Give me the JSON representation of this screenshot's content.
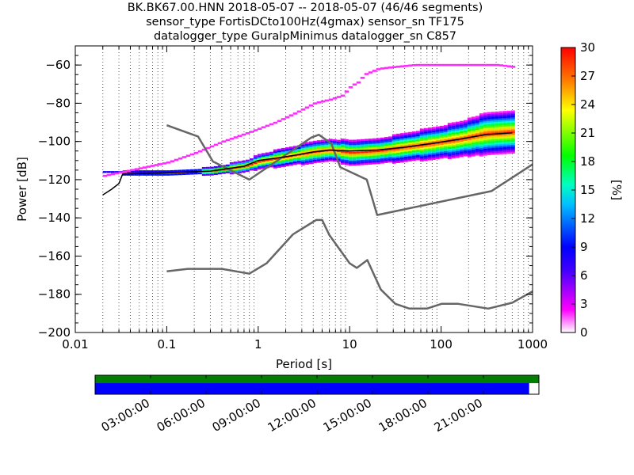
{
  "header": {
    "line1": "BK.BK67.00.HNN   2018-05-07 -- 2018-05-07  (46/46 segments)",
    "line2": "sensor_type FortisDCto100Hz(4gmax) sensor_sn TF175",
    "line3": "datalogger_type GuralpMinimus datalogger_sn C857"
  },
  "chart_data": {
    "type": "heatmap",
    "xlabel": "Period [s]",
    "ylabel": "Power [dB]",
    "x_scale": "log",
    "xlim": [
      0.01,
      1000
    ],
    "ylim": [
      -200,
      -50
    ],
    "x_ticks": [
      "0.01",
      "0.1",
      "1",
      "10",
      "100",
      "1000"
    ],
    "x_tick_values": [
      0.01,
      0.1,
      1,
      10,
      100,
      1000
    ],
    "y_ticks": [
      "−60",
      "−80",
      "−100",
      "−120",
      "−140",
      "−160",
      "−180",
      "−200"
    ],
    "y_tick_values": [
      -60,
      -80,
      -100,
      -120,
      -140,
      -160,
      -180,
      -200
    ],
    "grid": "dotted vertical at log minor ticks",
    "colorbar": {
      "label": "[%]",
      "range": [
        0,
        30
      ],
      "ticks": [
        "0",
        "3",
        "6",
        "9",
        "12",
        "15",
        "18",
        "21",
        "24",
        "27",
        "30"
      ],
      "tick_values": [
        0,
        3,
        6,
        9,
        12,
        15,
        18,
        21,
        24,
        27,
        30
      ],
      "colormap": "white-magenta-blue-cyan-green-yellow-red"
    },
    "nhnm": {
      "x": [
        0.1,
        0.22,
        0.32,
        0.8,
        3.8,
        4.6,
        6.3,
        7.9,
        15.4,
        20,
        354.8,
        1000
      ],
      "y": [
        -91.5,
        -97.4,
        -110.5,
        -120,
        -98,
        -96.5,
        -101,
        -113.5,
        -120,
        -138.5,
        -126,
        -112
      ]
    },
    "nlnm": {
      "x": [
        0.1,
        0.17,
        0.4,
        0.8,
        1.24,
        2.4,
        4.3,
        5,
        6,
        10,
        12,
        15.6,
        21.9,
        31.6,
        45,
        70,
        101,
        154,
        328,
        600,
        1000
      ],
      "y": [
        -168,
        -166.7,
        -166.7,
        -169.2,
        -163.7,
        -148.6,
        -141.1,
        -141.1,
        -149,
        -163.8,
        -166.2,
        -162.1,
        -177.5,
        -185,
        -187.5,
        -187.5,
        -185,
        -185,
        -187.5,
        -184.4,
        -178.5
      ]
    },
    "mode_line": {
      "x": [
        0.02,
        0.025,
        0.03,
        0.033,
        0.1,
        0.3,
        0.7,
        1,
        2,
        4,
        6,
        10,
        20,
        40,
        80,
        150,
        300,
        600
      ],
      "y": [
        -128,
        -125,
        -122,
        -117,
        -116.5,
        -115.5,
        -113,
        -110,
        -108,
        -105.5,
        -104.5,
        -105,
        -104.5,
        -103,
        -101,
        -99,
        -96.5,
        -95.5
      ]
    },
    "psd_band_center": {
      "x": [
        0.033,
        0.1,
        0.3,
        0.7,
        1,
        2,
        4,
        6,
        10,
        20,
        40,
        80,
        150,
        300,
        600
      ],
      "y": [
        -116.5,
        -116.5,
        -115.5,
        -113,
        -110.5,
        -108,
        -105.5,
        -104.5,
        -106,
        -105,
        -103,
        -101,
        -99,
        -96,
        -95
      ],
      "spread_db": [
        0,
        0,
        1,
        1.5,
        2,
        2.5,
        3,
        3,
        3.5,
        3.5,
        4,
        4.5,
        5,
        6,
        6
      ]
    },
    "psd_upper_branch": {
      "x": [
        0.02,
        0.05,
        0.1,
        0.2,
        0.4,
        0.8,
        1.5,
        2.5,
        4,
        6,
        8,
        10,
        12,
        14,
        20,
        30,
        50,
        100,
        200,
        400,
        600
      ],
      "y": [
        -118,
        -114,
        -111,
        -106,
        -100,
        -95,
        -90,
        -85,
        -80,
        -78,
        -76,
        -71,
        -69,
        -65,
        -62,
        -61,
        -60,
        -60,
        -60,
        -60,
        -61
      ],
      "colorbar_percent": 2
    },
    "low_band_stripe": {
      "x": [
        0.02,
        0.1,
        0.2
      ],
      "y": [
        -116,
        -116,
        -116
      ],
      "colorbar_percent": 8
    }
  },
  "time_bar": {
    "ticks": [
      "03:00:00",
      "06:00:00",
      "09:00:00",
      "12:00:00",
      "15:00:00",
      "18:00:00",
      "21:00:00"
    ],
    "coverage_top_color": "#007f00",
    "coverage_bottom_color": "#0000ff",
    "coverage_fraction": 0.978
  }
}
